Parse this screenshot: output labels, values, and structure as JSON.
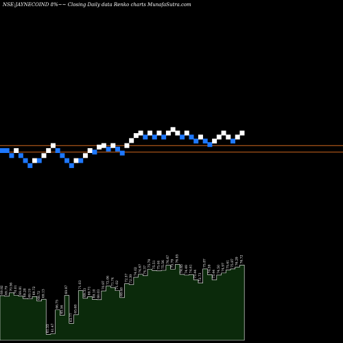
{
  "chart_data": {
    "type": "renko",
    "title": "NSE:JAYNECOIND 8%~~ Closing Daily data  Renko  charts MunafaSutra.com",
    "colors": {
      "background": "#000000",
      "up_brick": "#ffffff",
      "down_brick": "#1e78ff",
      "reference_line": "#d2691e",
      "volume_fill": "#0b2a0b",
      "volume_outline": "#ffffff"
    },
    "bricks": [
      {
        "i": 0,
        "level": 0,
        "dir": "down"
      },
      {
        "i": 1,
        "level": 0,
        "dir": "down"
      },
      {
        "i": 2,
        "level": -1,
        "dir": "down"
      },
      {
        "i": 3,
        "level": 0,
        "dir": "up"
      },
      {
        "i": 4,
        "level": -1,
        "dir": "down"
      },
      {
        "i": 5,
        "level": -2,
        "dir": "down"
      },
      {
        "i": 6,
        "level": -3,
        "dir": "down"
      },
      {
        "i": 7,
        "level": -2,
        "dir": "up"
      },
      {
        "i": 8,
        "level": -2,
        "dir": "down"
      },
      {
        "i": 9,
        "level": -1,
        "dir": "up"
      },
      {
        "i": 10,
        "level": 0,
        "dir": "up"
      },
      {
        "i": 11,
        "level": 1,
        "dir": "up"
      },
      {
        "i": 12,
        "level": 0,
        "dir": "down"
      },
      {
        "i": 13,
        "level": -1,
        "dir": "down"
      },
      {
        "i": 14,
        "level": -2,
        "dir": "down"
      },
      {
        "i": 15,
        "level": -3,
        "dir": "down"
      },
      {
        "i": 16,
        "level": -2,
        "dir": "up"
      },
      {
        "i": 17,
        "level": -2,
        "dir": "down"
      },
      {
        "i": 18,
        "level": -1,
        "dir": "up"
      },
      {
        "i": 19,
        "level": 0,
        "dir": "up"
      },
      {
        "i": 20,
        "level": -0.3,
        "dir": "down"
      },
      {
        "i": 21,
        "level": 0.7,
        "dir": "up"
      },
      {
        "i": 22,
        "level": 1,
        "dir": "up"
      },
      {
        "i": 23,
        "level": 0.3,
        "dir": "down"
      },
      {
        "i": 24,
        "level": 1,
        "dir": "up"
      },
      {
        "i": 25,
        "level": 0.3,
        "dir": "down"
      },
      {
        "i": 26,
        "level": -0.5,
        "dir": "down"
      },
      {
        "i": 27,
        "level": 1,
        "dir": "up"
      },
      {
        "i": 28,
        "level": 2,
        "dir": "up"
      },
      {
        "i": 29,
        "level": 3,
        "dir": "up"
      },
      {
        "i": 30,
        "level": 3.5,
        "dir": "up"
      },
      {
        "i": 31,
        "level": 2.7,
        "dir": "down"
      },
      {
        "i": 32,
        "level": 3.5,
        "dir": "up"
      },
      {
        "i": 33,
        "level": 2.7,
        "dir": "down"
      },
      {
        "i": 34,
        "level": 3.5,
        "dir": "up"
      },
      {
        "i": 35,
        "level": 2.7,
        "dir": "down"
      },
      {
        "i": 36,
        "level": 3.5,
        "dir": "up"
      },
      {
        "i": 37,
        "level": 4.2,
        "dir": "up"
      },
      {
        "i": 38,
        "level": 3.5,
        "dir": "up"
      },
      {
        "i": 39,
        "level": 2.7,
        "dir": "down"
      },
      {
        "i": 40,
        "level": 3.5,
        "dir": "up"
      },
      {
        "i": 41,
        "level": 2.7,
        "dir": "down"
      },
      {
        "i": 42,
        "level": 1.9,
        "dir": "down"
      },
      {
        "i": 43,
        "level": 2.7,
        "dir": "up"
      },
      {
        "i": 44,
        "level": 1.9,
        "dir": "down"
      },
      {
        "i": 45,
        "level": 1.2,
        "dir": "down"
      },
      {
        "i": 46,
        "level": 1.9,
        "dir": "up"
      },
      {
        "i": 47,
        "level": 2.7,
        "dir": "up"
      },
      {
        "i": 48,
        "level": 3.5,
        "dir": "up"
      },
      {
        "i": 49,
        "level": 2.7,
        "dir": "up"
      },
      {
        "i": 50,
        "level": 1.9,
        "dir": "down"
      },
      {
        "i": 51,
        "level": 2.7,
        "dir": "up"
      },
      {
        "i": 52,
        "level": 3.5,
        "dir": "up"
      }
    ],
    "reference_lines": [
      1,
      -0.3
    ],
    "volume_labels": [
      "69.92",
      "69.79",
      "70.56",
      "70.01",
      "69.81",
      "69.28",
      "69.19",
      "69.72",
      "68.72",
      "69.13",
      "61.33",
      "61.47",
      "66.75",
      "65.56",
      "69.97",
      "63.77",
      "65.68",
      "71.03",
      "69.33",
      "69.71",
      "69.10",
      "69.03",
      "70.97",
      "72.06",
      "71.74",
      "71.02",
      "69.48",
      "72.57",
      "72.39",
      "74.02",
      "74.67",
      "74.37",
      "75.79",
      "75.51",
      "75.44",
      "75.56",
      "76.67",
      "75.79",
      "76.85",
      "74.65",
      "74.49",
      "74.61",
      "73.44",
      "72.73",
      "75.87",
      "74.59",
      "73.44",
      "74.50",
      "74.97",
      "75.61",
      "75.87",
      "76.29",
      "76.72"
    ]
  }
}
